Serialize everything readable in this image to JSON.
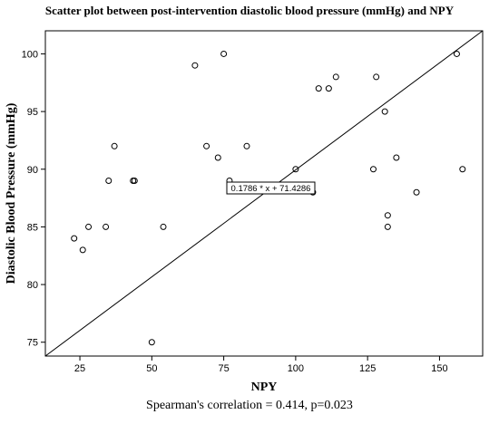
{
  "chart_data": {
    "type": "scatter",
    "title": "Scatter plot between post-intervention diastolic blood pressure (mmHg) and NPY",
    "xlabel": "NPY",
    "ylabel": "Diastolic Blood Pressure (mmHg)",
    "xlim": [
      13,
      165
    ],
    "ylim": [
      73.8,
      102
    ],
    "x_ticks": [
      25,
      50,
      75,
      100,
      125,
      150
    ],
    "y_ticks": [
      75,
      80,
      85,
      90,
      95,
      100
    ],
    "grid": false,
    "points": [
      {
        "x": 23,
        "y": 84
      },
      {
        "x": 26,
        "y": 83
      },
      {
        "x": 28,
        "y": 85
      },
      {
        "x": 34,
        "y": 85
      },
      {
        "x": 35,
        "y": 89
      },
      {
        "x": 37,
        "y": 92
      },
      {
        "x": 43.5,
        "y": 89
      },
      {
        "x": 44,
        "y": 89
      },
      {
        "x": 50,
        "y": 75
      },
      {
        "x": 54,
        "y": 85
      },
      {
        "x": 65,
        "y": 99
      },
      {
        "x": 69,
        "y": 92
      },
      {
        "x": 73,
        "y": 91
      },
      {
        "x": 75,
        "y": 100
      },
      {
        "x": 77,
        "y": 89
      },
      {
        "x": 83,
        "y": 92
      },
      {
        "x": 100,
        "y": 90
      },
      {
        "x": 106,
        "y": 88
      },
      {
        "x": 108,
        "y": 97
      },
      {
        "x": 111.5,
        "y": 97
      },
      {
        "x": 114,
        "y": 98
      },
      {
        "x": 127,
        "y": 90
      },
      {
        "x": 128,
        "y": 98
      },
      {
        "x": 131,
        "y": 95
      },
      {
        "x": 132,
        "y": 86
      },
      {
        "x": 132,
        "y": 85
      },
      {
        "x": 135,
        "y": 91
      },
      {
        "x": 142,
        "y": 88
      },
      {
        "x": 156,
        "y": 100
      },
      {
        "x": 158,
        "y": 90
      }
    ],
    "fit_line": {
      "slope": 0.1786,
      "intercept": 71.4286,
      "label": "0.1786 * x + 71.4286"
    },
    "annotation": "Spearman's correlation = 0.414, p=0.023"
  }
}
